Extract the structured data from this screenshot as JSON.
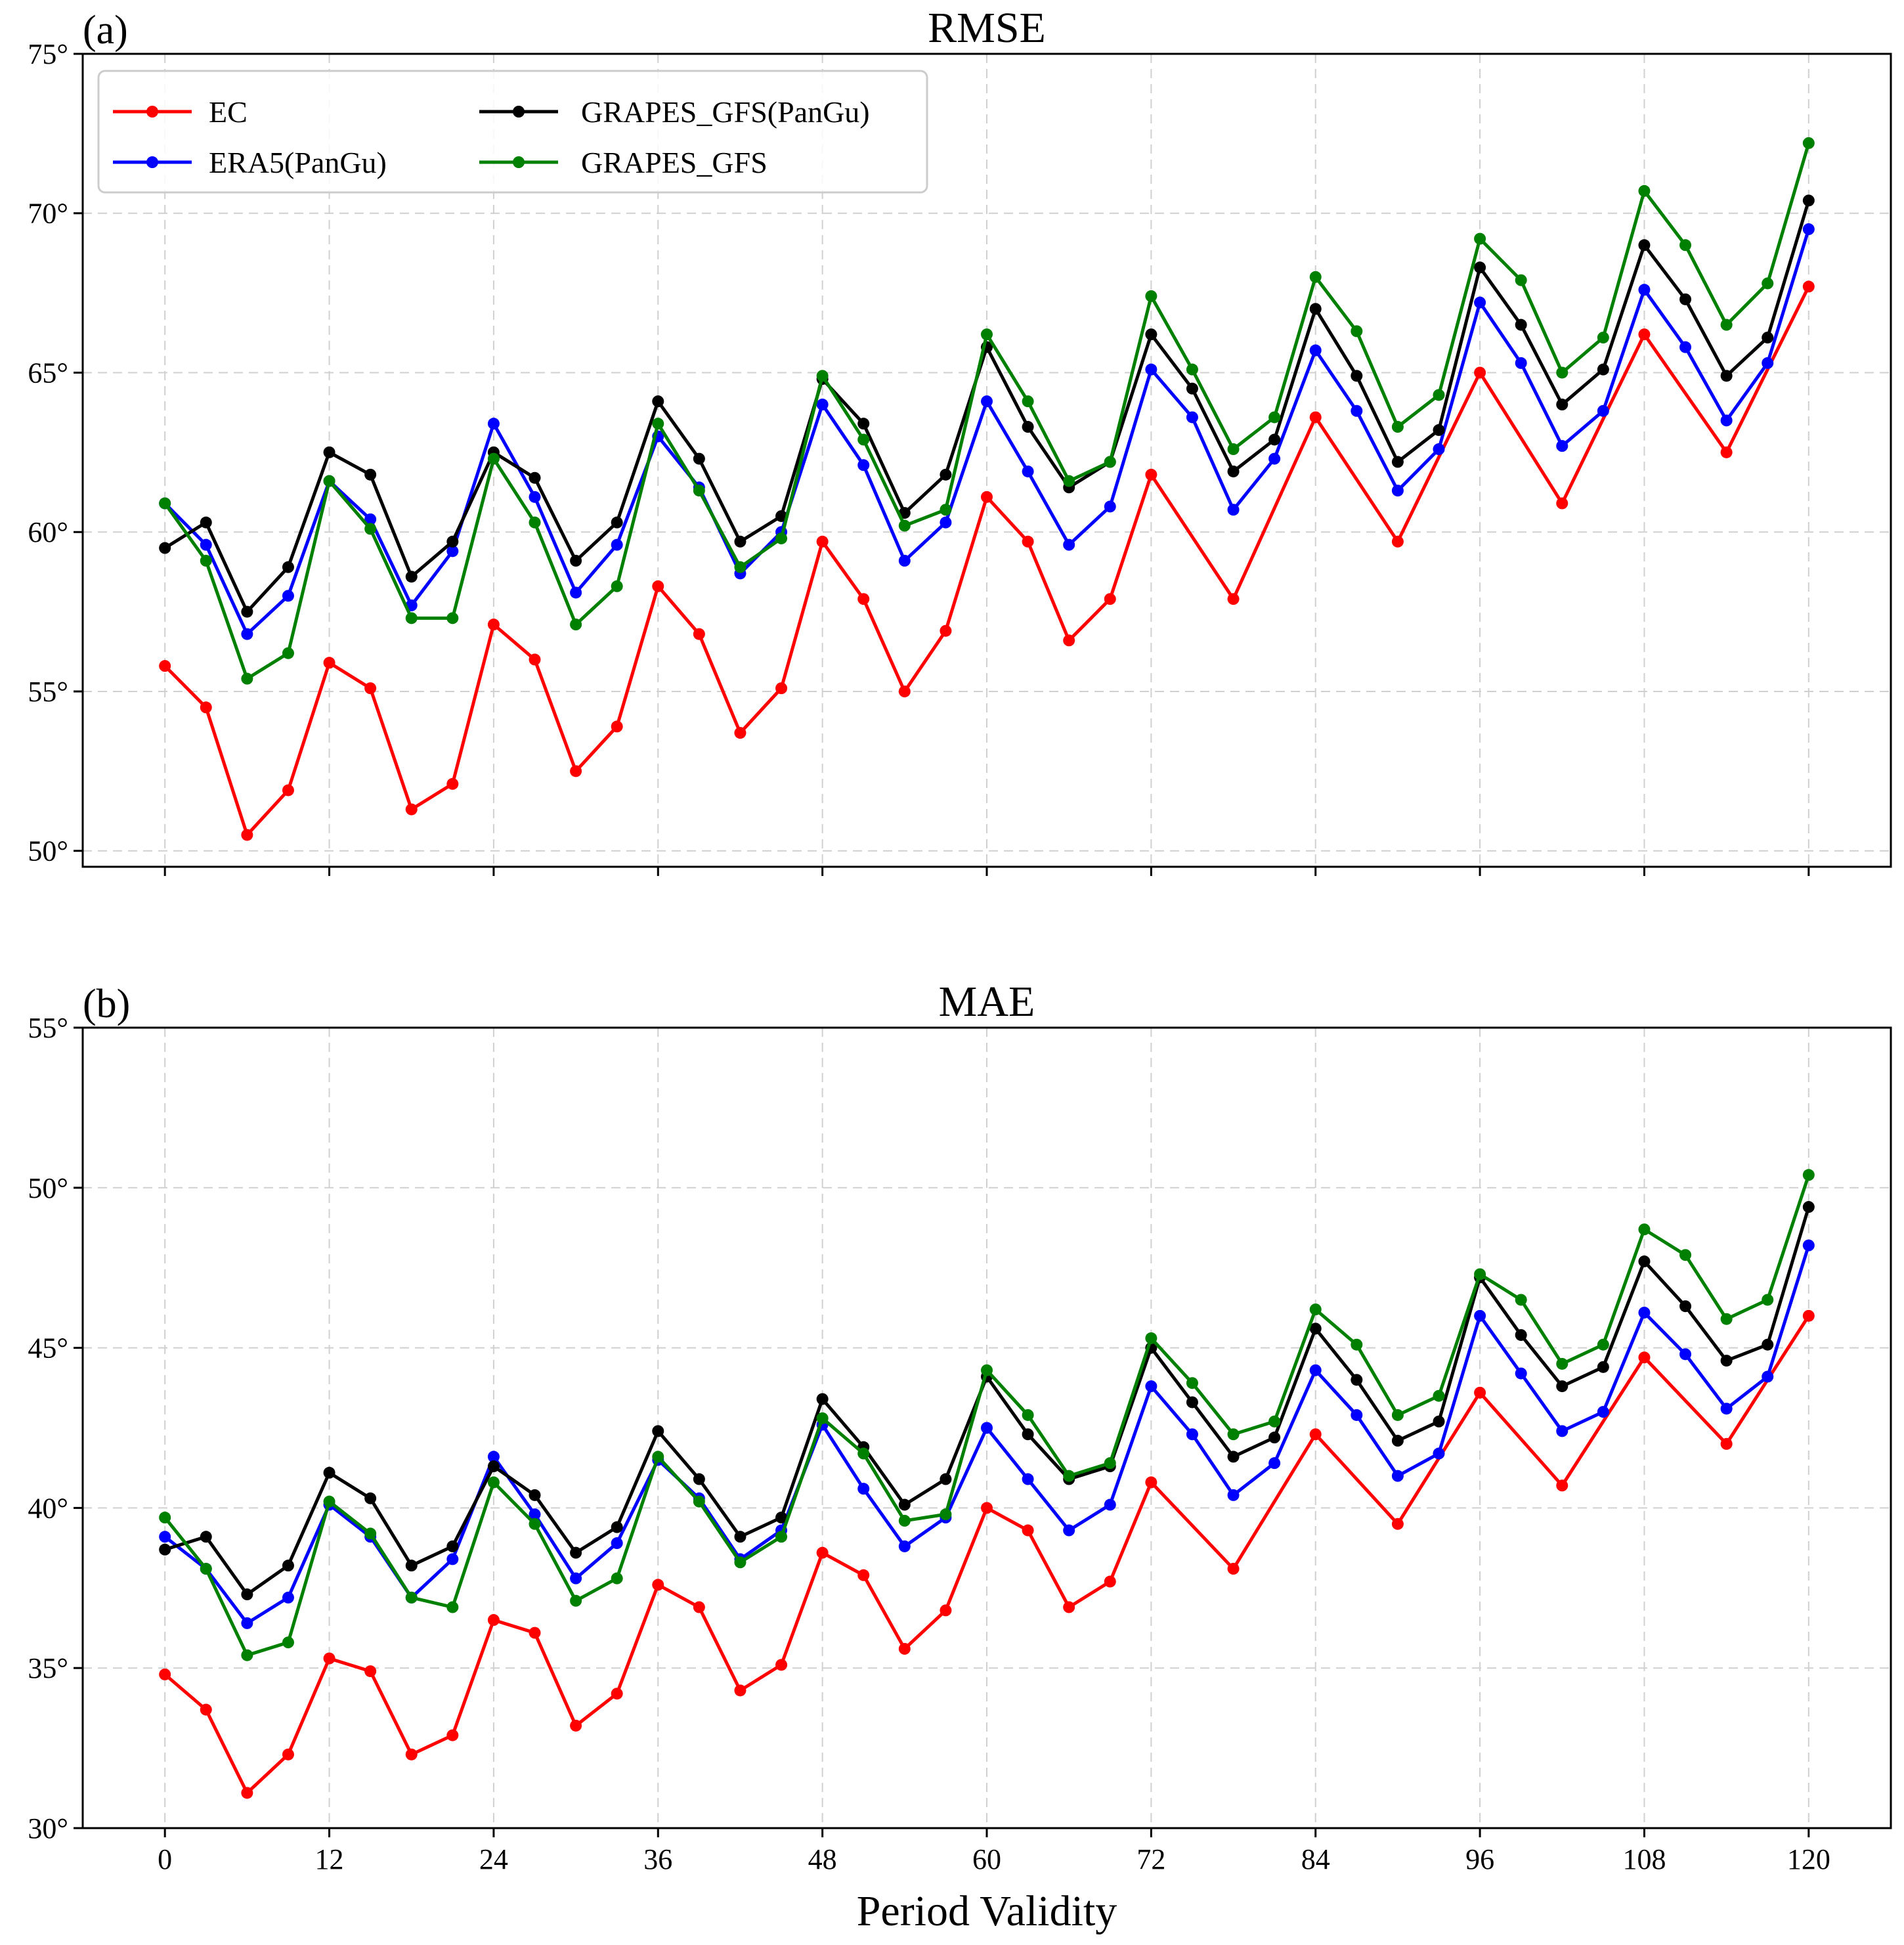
{
  "chart_data": [
    {
      "type": "line",
      "panel_label": "(a)",
      "title": "RMSE",
      "xlabel": "",
      "ylabel": "",
      "x": [
        0,
        3,
        6,
        9,
        12,
        15,
        18,
        21,
        24,
        27,
        30,
        33,
        36,
        39,
        42,
        45,
        48,
        51,
        54,
        57,
        60,
        63,
        66,
        69,
        72,
        75,
        78,
        81,
        84,
        87,
        90,
        93,
        96,
        99,
        102,
        105,
        108,
        111,
        114,
        117,
        120
      ],
      "xlim": [
        -6,
        126
      ],
      "ylim": [
        49.5,
        75
      ],
      "xticks": [
        0,
        12,
        24,
        36,
        48,
        60,
        72,
        84,
        96,
        108,
        120
      ],
      "xtick_labels": [
        "0",
        "12",
        "24",
        "36",
        "48",
        "60",
        "72",
        "84",
        "96",
        "108",
        "120"
      ],
      "yticks": [
        50,
        55,
        60,
        65,
        70,
        75
      ],
      "ytick_labels": [
        "50°",
        "55°",
        "60°",
        "65°",
        "70°",
        "75°"
      ],
      "grid": true,
      "legend": "top-left",
      "series": [
        {
          "name": "EC",
          "color": "#ff0000",
          "x": [
            0,
            3,
            6,
            9,
            12,
            15,
            18,
            21,
            24,
            27,
            30,
            33,
            36,
            39,
            42,
            45,
            48,
            51,
            54,
            57,
            60,
            63,
            66,
            69,
            72,
            78,
            84,
            90,
            96,
            102,
            108,
            114,
            120
          ],
          "values": [
            55.8,
            54.5,
            50.5,
            51.9,
            55.9,
            55.1,
            51.3,
            52.1,
            57.1,
            56.0,
            52.5,
            53.9,
            58.3,
            56.8,
            53.7,
            55.1,
            59.7,
            57.9,
            55.0,
            56.9,
            61.1,
            59.7,
            56.6,
            57.9,
            61.8,
            57.9,
            63.6,
            59.7,
            65.0,
            60.9,
            66.2,
            62.5,
            67.7
          ]
        },
        {
          "name": "ERA5(PanGu)",
          "color": "#0000ff",
          "values": [
            60.9,
            59.6,
            56.8,
            58.0,
            61.6,
            60.4,
            57.7,
            59.4,
            63.4,
            61.1,
            58.1,
            59.6,
            63.0,
            61.4,
            58.7,
            60.0,
            64.0,
            62.1,
            59.1,
            60.3,
            64.1,
            61.9,
            59.6,
            60.8,
            65.1,
            63.6,
            60.7,
            62.3,
            65.7,
            63.8,
            61.3,
            62.6,
            67.2,
            65.3,
            62.7,
            63.8,
            67.6,
            65.8,
            63.5,
            65.3,
            69.5
          ]
        },
        {
          "name": "GRAPES_GFS(PanGu)",
          "color": "#000000",
          "values": [
            59.5,
            60.3,
            57.5,
            58.9,
            62.5,
            61.8,
            58.6,
            59.7,
            62.5,
            61.7,
            59.1,
            60.3,
            64.1,
            62.3,
            59.7,
            60.5,
            64.8,
            63.4,
            60.6,
            61.8,
            65.8,
            63.3,
            61.4,
            62.2,
            66.2,
            64.5,
            61.9,
            62.9,
            67.0,
            64.9,
            62.2,
            63.2,
            68.3,
            66.5,
            64.0,
            65.1,
            69.0,
            67.3,
            64.9,
            66.1,
            70.4
          ]
        },
        {
          "name": "GRAPES_GFS",
          "color": "#008000",
          "values": [
            60.9,
            59.1,
            55.4,
            56.2,
            61.6,
            60.1,
            57.3,
            57.3,
            62.3,
            60.3,
            57.1,
            58.3,
            63.4,
            61.3,
            58.9,
            59.8,
            64.9,
            62.9,
            60.2,
            60.7,
            66.2,
            64.1,
            61.6,
            62.2,
            67.4,
            65.1,
            62.6,
            63.6,
            68.0,
            66.3,
            63.3,
            64.3,
            69.2,
            67.9,
            65.0,
            66.1,
            70.7,
            69.0,
            66.5,
            67.8,
            72.2
          ]
        }
      ]
    },
    {
      "type": "line",
      "panel_label": "(b)",
      "title": "MAE",
      "xlabel": "Period Validity",
      "ylabel": "",
      "x": [
        0,
        3,
        6,
        9,
        12,
        15,
        18,
        21,
        24,
        27,
        30,
        33,
        36,
        39,
        42,
        45,
        48,
        51,
        54,
        57,
        60,
        63,
        66,
        69,
        72,
        75,
        78,
        81,
        84,
        87,
        90,
        93,
        96,
        99,
        102,
        105,
        108,
        111,
        114,
        117,
        120
      ],
      "xlim": [
        -6,
        126
      ],
      "ylim": [
        30,
        55
      ],
      "xticks": [
        0,
        12,
        24,
        36,
        48,
        60,
        72,
        84,
        96,
        108,
        120
      ],
      "xtick_labels": [
        "0",
        "12",
        "24",
        "36",
        "48",
        "60",
        "72",
        "84",
        "96",
        "108",
        "120"
      ],
      "yticks": [
        30,
        35,
        40,
        45,
        50,
        55
      ],
      "ytick_labels": [
        "30°",
        "35°",
        "40°",
        "45°",
        "50°",
        "55°"
      ],
      "grid": true,
      "series": [
        {
          "name": "EC",
          "color": "#ff0000",
          "x": [
            0,
            3,
            6,
            9,
            12,
            15,
            18,
            21,
            24,
            27,
            30,
            33,
            36,
            39,
            42,
            45,
            48,
            51,
            54,
            57,
            60,
            63,
            66,
            69,
            72,
            78,
            84,
            90,
            96,
            102,
            108,
            114,
            120
          ],
          "values": [
            34.8,
            33.7,
            31.1,
            32.3,
            35.3,
            34.9,
            32.3,
            32.9,
            36.5,
            36.1,
            33.2,
            34.2,
            37.6,
            36.9,
            34.3,
            35.1,
            38.6,
            37.9,
            35.6,
            36.8,
            40.0,
            39.3,
            36.9,
            37.7,
            40.8,
            38.1,
            42.3,
            39.5,
            43.6,
            40.7,
            44.7,
            42.0,
            46.0
          ]
        },
        {
          "name": "ERA5(PanGu)",
          "color": "#0000ff",
          "values": [
            39.1,
            38.1,
            36.4,
            37.2,
            40.1,
            39.1,
            37.2,
            38.4,
            41.6,
            39.8,
            37.8,
            38.9,
            41.5,
            40.3,
            38.4,
            39.3,
            42.6,
            40.6,
            38.8,
            39.7,
            42.5,
            40.9,
            39.3,
            40.1,
            43.8,
            42.3,
            40.4,
            41.4,
            44.3,
            42.9,
            41.0,
            41.7,
            46.0,
            44.2,
            42.4,
            43.0,
            46.1,
            44.8,
            43.1,
            44.1,
            48.2
          ]
        },
        {
          "name": "GRAPES_GFS(PanGu)",
          "color": "#000000",
          "values": [
            38.7,
            39.1,
            37.3,
            38.2,
            41.1,
            40.3,
            38.2,
            38.8,
            41.3,
            40.4,
            38.6,
            39.4,
            42.4,
            40.9,
            39.1,
            39.7,
            43.4,
            41.9,
            40.1,
            40.9,
            44.1,
            42.3,
            40.9,
            41.3,
            45.0,
            43.3,
            41.6,
            42.2,
            45.6,
            44.0,
            42.1,
            42.7,
            47.2,
            45.4,
            43.8,
            44.4,
            47.7,
            46.3,
            44.6,
            45.1,
            49.4
          ]
        },
        {
          "name": "GRAPES_GFS",
          "color": "#008000",
          "values": [
            39.7,
            38.1,
            35.4,
            35.8,
            40.2,
            39.2,
            37.2,
            36.9,
            40.8,
            39.5,
            37.1,
            37.8,
            41.6,
            40.2,
            38.3,
            39.1,
            42.8,
            41.7,
            39.6,
            39.8,
            44.3,
            42.9,
            41.0,
            41.4,
            45.3,
            43.9,
            42.3,
            42.7,
            46.2,
            45.1,
            42.9,
            43.5,
            47.3,
            46.5,
            44.5,
            45.1,
            48.7,
            47.9,
            45.9,
            46.5,
            50.4
          ]
        }
      ]
    }
  ]
}
